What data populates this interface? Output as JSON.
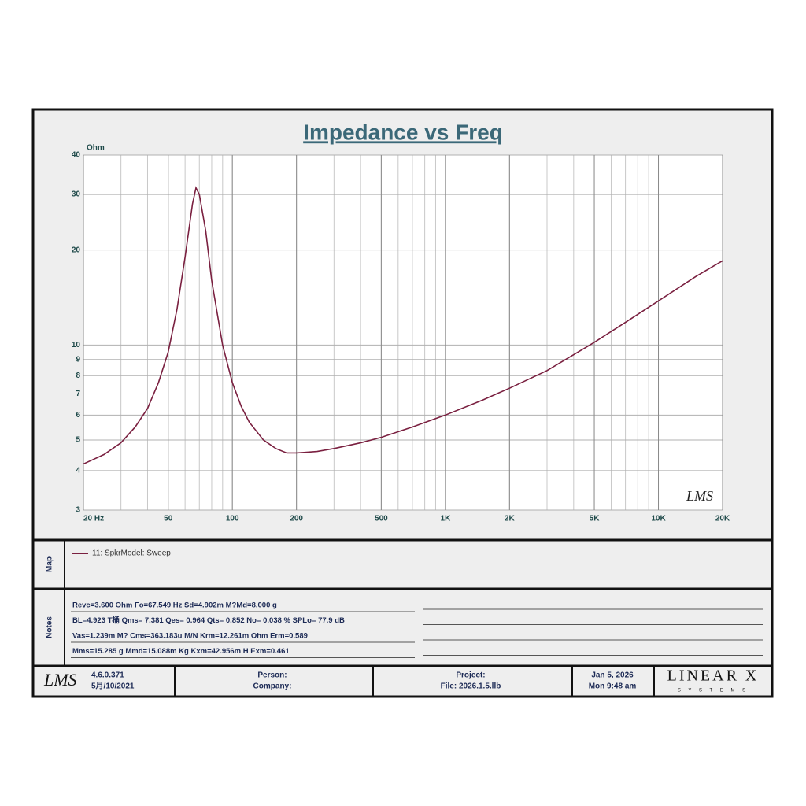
{
  "chart_data": {
    "type": "line",
    "title": "Impedance vs Freq",
    "y_label": "Ohm",
    "annotation": "LMS",
    "x": [
      20,
      25,
      30,
      35,
      40,
      45,
      50,
      55,
      60,
      65,
      67.5,
      70,
      75,
      80,
      90,
      100,
      110,
      120,
      140,
      160,
      180,
      200,
      250,
      300,
      400,
      500,
      700,
      1000,
      1500,
      2000,
      3000,
      5000,
      7000,
      10000,
      15000,
      20000
    ],
    "series": [
      {
        "name": "11: SpkrModel: Sweep",
        "color": "#7a2040",
        "values": [
          4.2,
          4.5,
          4.9,
          5.5,
          6.3,
          7.6,
          9.5,
          13,
          19,
          28,
          31.5,
          30,
          23,
          16,
          10,
          7.6,
          6.4,
          5.7,
          5.0,
          4.7,
          4.55,
          4.55,
          4.6,
          4.7,
          4.9,
          5.1,
          5.5,
          6.0,
          6.7,
          7.3,
          8.3,
          10.2,
          11.8,
          13.8,
          16.5,
          18.5
        ]
      }
    ],
    "xscale": "log",
    "yscale": "log",
    "xlim": [
      20,
      20000
    ],
    "ylim": [
      3,
      40
    ],
    "xticks": [
      {
        "value": 20,
        "label": "20  Hz"
      },
      50,
      100,
      200,
      500,
      {
        "value": 1000,
        "label": "1K"
      },
      {
        "value": 2000,
        "label": "2K"
      },
      {
        "value": 5000,
        "label": "5K"
      },
      {
        "value": 10000,
        "label": "10K"
      },
      {
        "value": 20000,
        "label": "20K"
      }
    ],
    "yticks": [
      3,
      4,
      5,
      6,
      7,
      8,
      9,
      10,
      20,
      30,
      40
    ],
    "grid": true
  },
  "map": {
    "label": "Map"
  },
  "notes": {
    "label": "Notes",
    "lines": [
      "Revc=3.600 Ohm  Fo=67.549 Hz  Sd=4.902m M?Md=8.000 g",
      "BL=4.923 T桶  Qms= 7.381  Qes= 0.964  Qts= 0.852  No= 0.038 %  SPLo= 77.9 dB",
      "Vas=1.239m M? Cms=363.183u M/N  Krm=12.261m Ohm  Erm=0.589",
      "Mms=15.285 g  Mmd=15.088m Kg  Kxm=42.956m H  Exm=0.461"
    ]
  },
  "footer": {
    "logo": "LMS",
    "version": "4.6.0.371",
    "date_built": "5月/10/2021",
    "person": "Person:",
    "company": "Company:",
    "project": "Project:",
    "file": "File: 2026.1.5.llb",
    "date": "Jan  5, 2026",
    "time": "Mon  9:48 am",
    "brand": "LINEAR X",
    "brand_sub": "S Y S T E M S"
  }
}
